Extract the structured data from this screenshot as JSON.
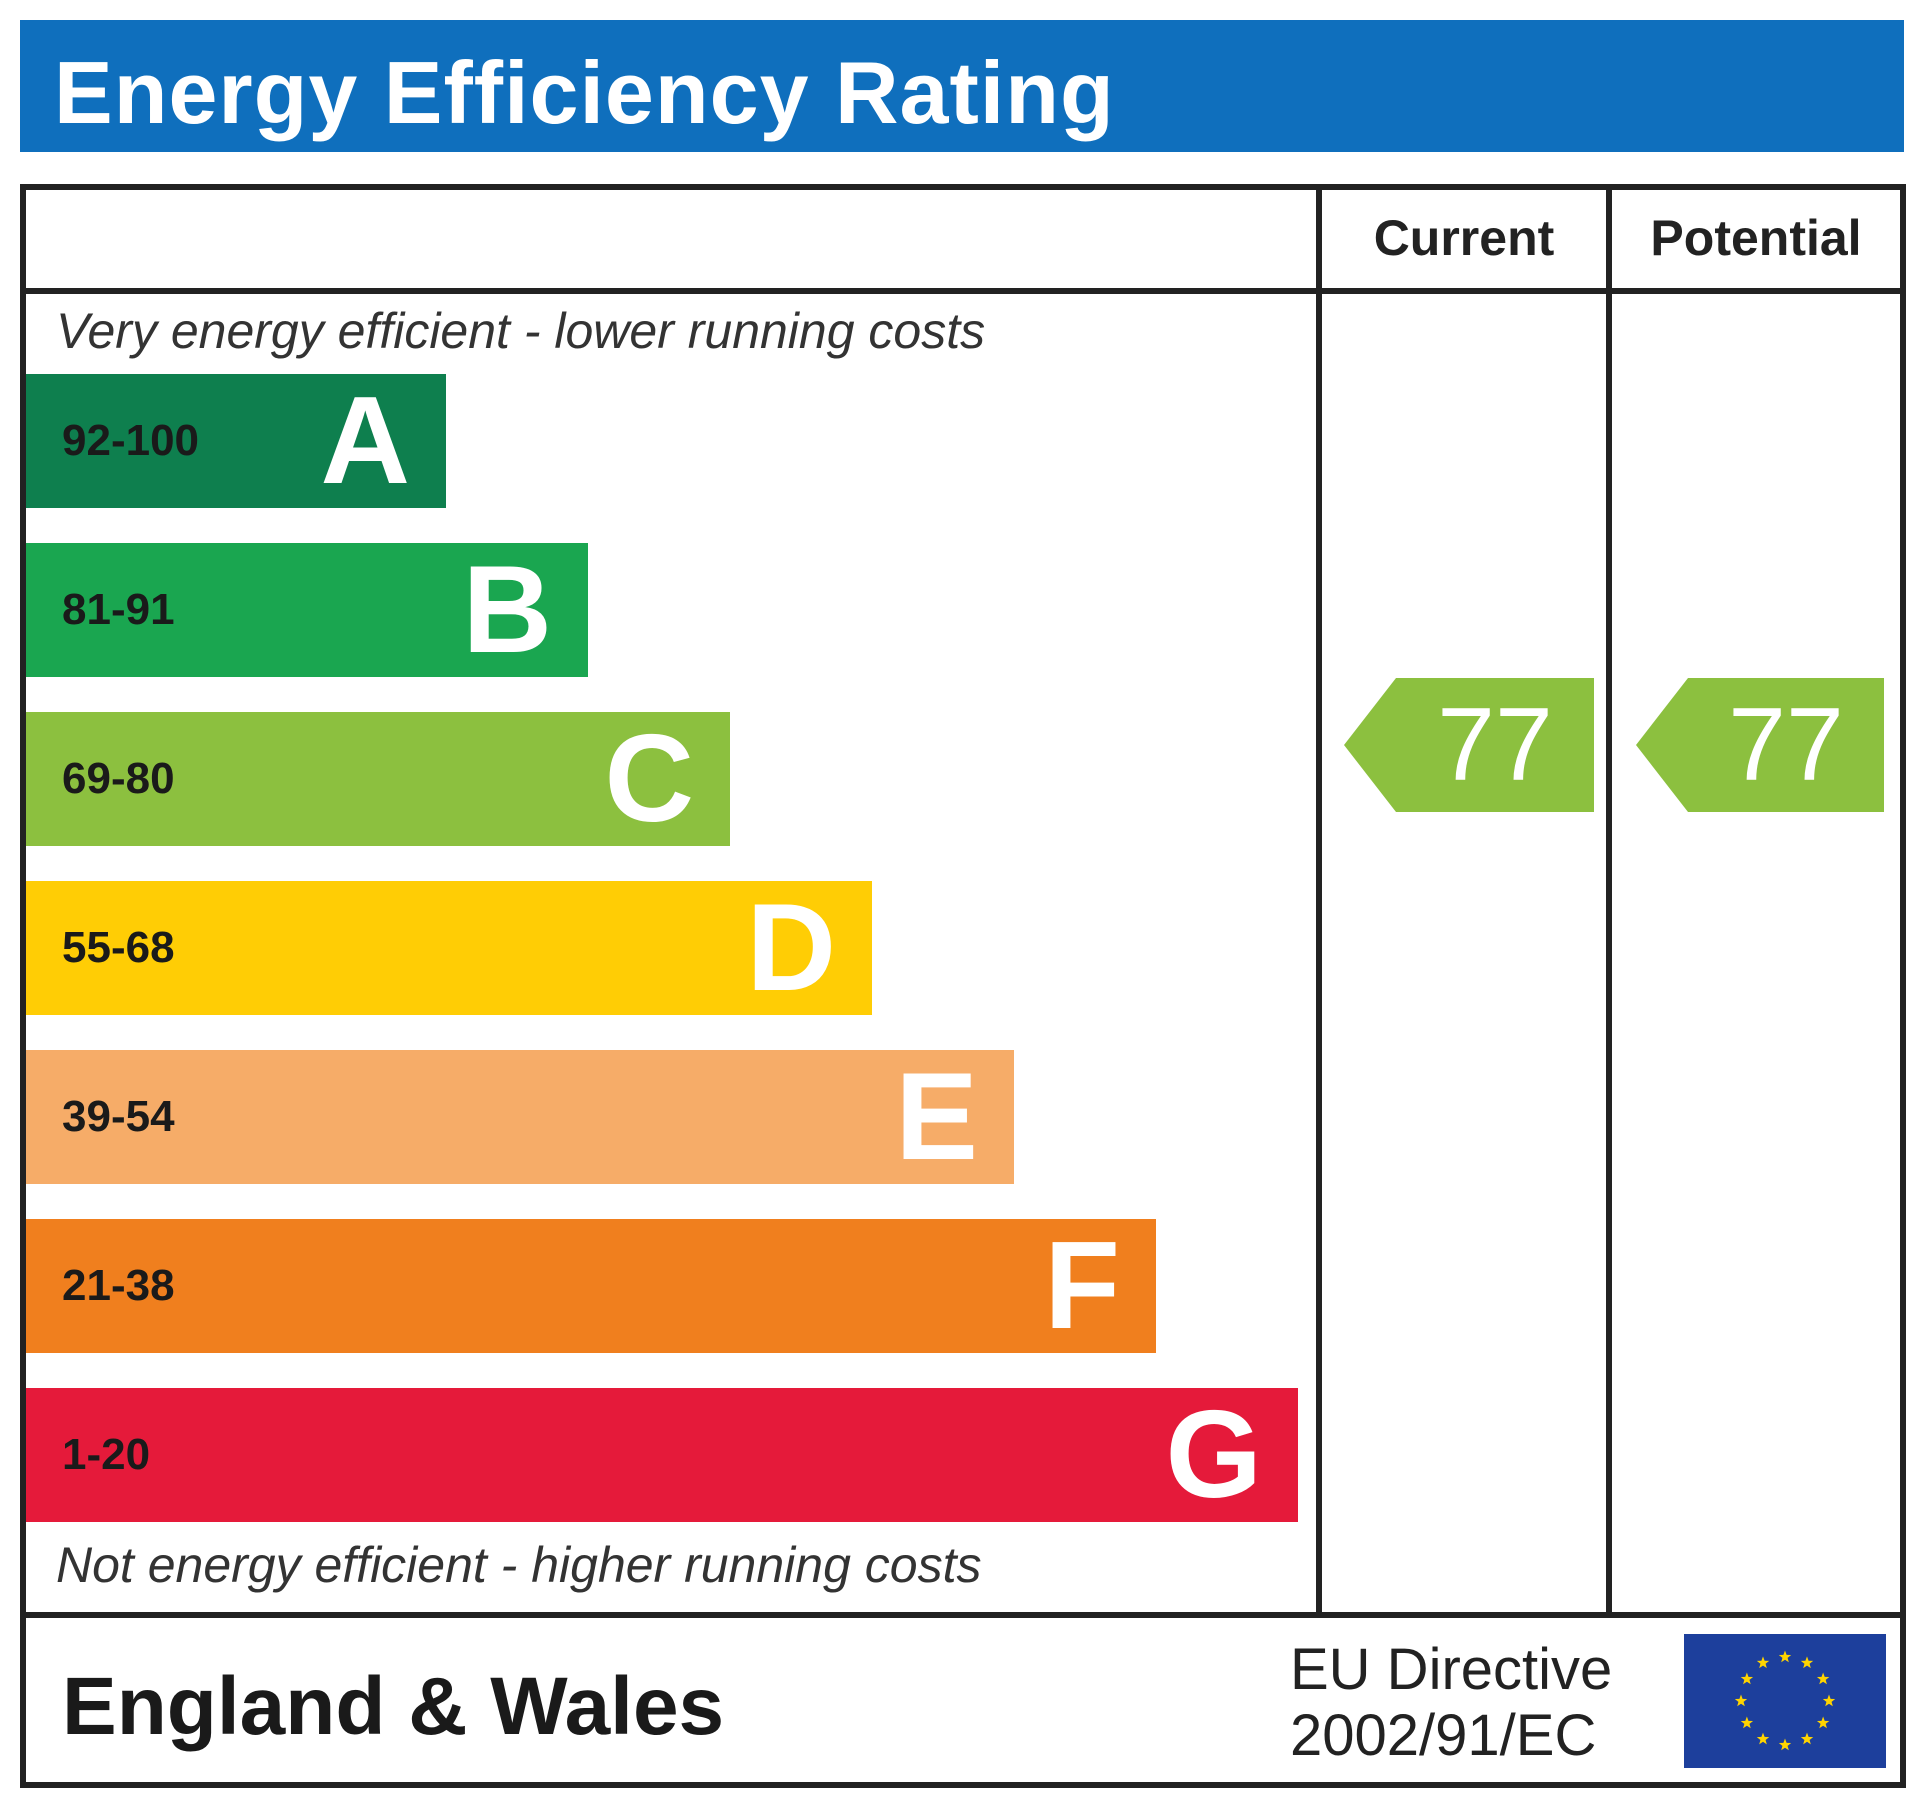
{
  "header": {
    "title": "Energy Efficiency Rating"
  },
  "columns": {
    "current_label": "Current",
    "potential_label": "Potential"
  },
  "notes": {
    "top": "Very energy efficient - lower running costs",
    "bottom": "Not energy efficient - higher running costs"
  },
  "chart_data": {
    "type": "bar",
    "title": "Energy Efficiency Rating",
    "categories": [
      "A",
      "B",
      "C",
      "D",
      "E",
      "F",
      "G"
    ],
    "bands": [
      {
        "letter": "A",
        "range": "92-100",
        "color": "#0e7f4e"
      },
      {
        "letter": "B",
        "range": "81-91",
        "color": "#1aa650"
      },
      {
        "letter": "C",
        "range": "69-80",
        "color": "#8cc03f"
      },
      {
        "letter": "D",
        "range": "55-68",
        "color": "#ffcd05"
      },
      {
        "letter": "E",
        "range": "39-54",
        "color": "#f6ac68"
      },
      {
        "letter": "F",
        "range": "21-38",
        "color": "#f07f1e"
      },
      {
        "letter": "G",
        "range": "1-20",
        "color": "#e51a3a"
      }
    ],
    "current": {
      "value": 77,
      "band": "C",
      "label": "77"
    },
    "potential": {
      "value": 77,
      "band": "C",
      "label": "77"
    }
  },
  "footer": {
    "region": "England & Wales",
    "directive_line1": "EU Directive",
    "directive_line2": "2002/91/EC",
    "flag_colors": {
      "field": "#1d3f9c",
      "stars": "#ffd400"
    }
  }
}
